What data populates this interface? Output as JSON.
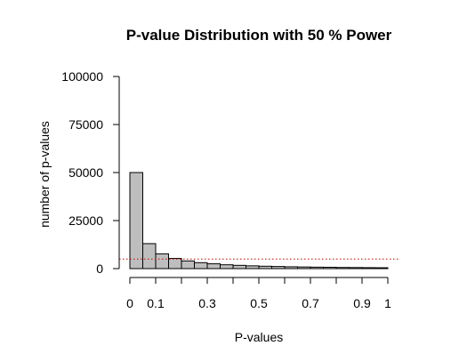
{
  "colors": {
    "bar_fill": "#bebebe",
    "bar_stroke": "#000000",
    "threshold_line": "#cd0000"
  },
  "chart_data": {
    "type": "bar",
    "title": "P-value Distribution with 50 % Power",
    "xlabel": "P-values",
    "ylabel": "number of p-values",
    "xlim": [
      0,
      1
    ],
    "ylim": [
      0,
      100000
    ],
    "bin_width": 0.05,
    "bins": [
      0,
      0.05,
      0.1,
      0.15,
      0.2,
      0.25,
      0.3,
      0.35,
      0.4,
      0.45,
      0.5,
      0.55,
      0.6,
      0.65,
      0.7,
      0.75,
      0.8,
      0.85,
      0.9,
      0.95
    ],
    "values": [
      50000,
      13000,
      7700,
      5300,
      4000,
      3100,
      2500,
      2000,
      1700,
      1450,
      1250,
      1100,
      950,
      850,
      750,
      700,
      600,
      550,
      500,
      450
    ],
    "x_tick_values": [
      0,
      0.1,
      0.3,
      0.5,
      0.7,
      0.9,
      1
    ],
    "x_tick_labels": [
      "0",
      "0.1",
      "0.3",
      "0.5",
      "0.7",
      "0.9",
      "1"
    ],
    "x_minor_ticks": [
      0,
      0.1,
      0.2,
      0.3,
      0.4,
      0.5,
      0.6,
      0.7,
      0.8,
      0.9,
      1
    ],
    "y_tick_values": [
      0,
      25000,
      50000,
      75000,
      100000
    ],
    "y_tick_labels": [
      "0",
      "25000",
      "50000",
      "75000",
      "100000"
    ],
    "reference_line": {
      "y": 5000,
      "style": "dotted"
    },
    "grid": false,
    "legend": "none"
  }
}
